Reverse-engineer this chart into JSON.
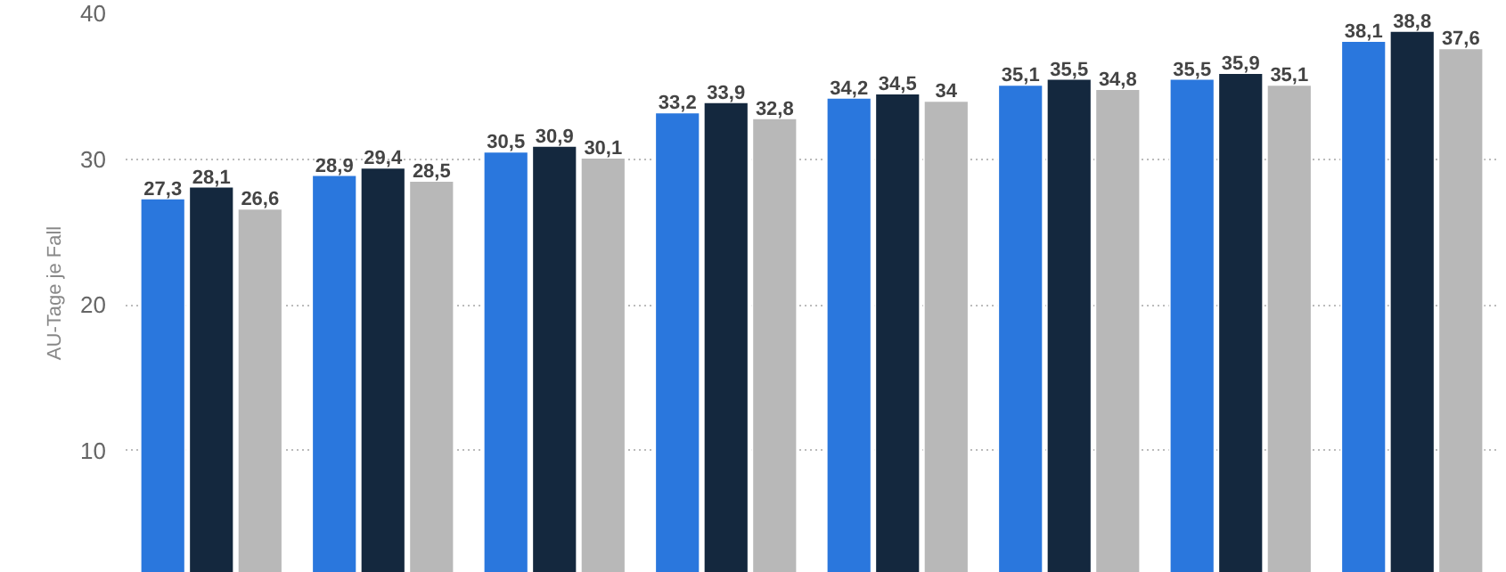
{
  "chart_data": {
    "type": "bar",
    "ylabel": "AU-Tage je Fall",
    "categories": [
      null,
      null,
      null,
      null,
      null,
      null,
      null,
      null
    ],
    "series": [
      {
        "color": "#2a77dd",
        "values": [
          27.3,
          28.9,
          30.5,
          33.2,
          34.2,
          35.1,
          35.5,
          38.1
        ],
        "value_labels": [
          "27,3",
          "28,9",
          "30,5",
          "33,2",
          "34,2",
          "35,1",
          "35,5",
          "38,1"
        ]
      },
      {
        "color": "#14283e",
        "values": [
          28.1,
          29.4,
          30.9,
          33.9,
          34.5,
          35.5,
          35.9,
          38.8
        ],
        "value_labels": [
          "28,1",
          "29,4",
          "30,9",
          "33,9",
          "34,5",
          "35,5",
          "35,9",
          "38,8"
        ]
      },
      {
        "color": "#b8b8b8",
        "values": [
          26.6,
          28.5,
          30.1,
          32.8,
          34,
          34.8,
          35.1,
          37.6
        ],
        "value_labels": [
          "26,6",
          "28,5",
          "30,1",
          "32,8",
          "34",
          "34,8",
          "35,1",
          "37,6"
        ]
      }
    ],
    "ylim": [
      1.6,
      40
    ],
    "yticks": [
      10,
      20,
      30,
      40
    ],
    "grid": "y"
  }
}
